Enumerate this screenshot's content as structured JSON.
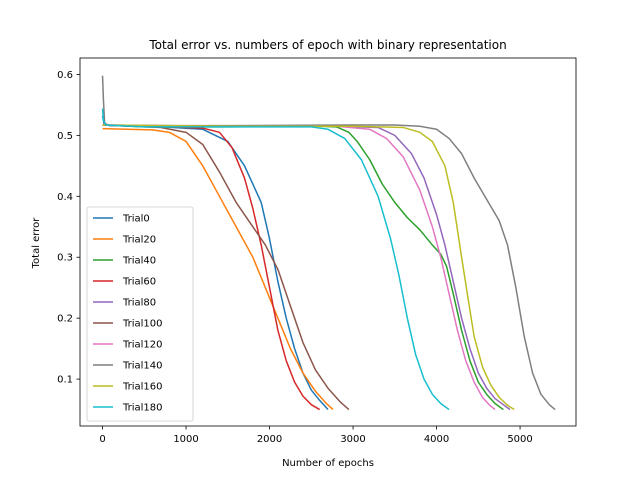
{
  "chart_data": {
    "type": "line",
    "title": "Total error vs. numbers of epoch with binary representation",
    "xlabel": "Number of epochs",
    "ylabel": "Total error",
    "xlim": [
      -270,
      5670
    ],
    "ylim": [
      0.023,
      0.627
    ],
    "xticks": [
      0,
      1000,
      2000,
      3000,
      4000,
      5000
    ],
    "yticks": [
      0.1,
      0.2,
      0.3,
      0.4,
      0.5,
      0.6
    ],
    "grid": false,
    "legend_position": "lower-left",
    "series": [
      {
        "name": "Trial0",
        "color": "#1f77b4",
        "points": [
          [
            0,
            0.532
          ],
          [
            20,
            0.518
          ],
          [
            100,
            0.516
          ],
          [
            600,
            0.515
          ],
          [
            1200,
            0.51
          ],
          [
            1500,
            0.49
          ],
          [
            1700,
            0.45
          ],
          [
            1900,
            0.39
          ],
          [
            2000,
            0.33
          ],
          [
            2100,
            0.26
          ],
          [
            2200,
            0.2
          ],
          [
            2300,
            0.15
          ],
          [
            2400,
            0.11
          ],
          [
            2500,
            0.082
          ],
          [
            2600,
            0.065
          ],
          [
            2700,
            0.05
          ]
        ]
      },
      {
        "name": "Trial20",
        "color": "#ff7f0e",
        "points": [
          [
            0,
            0.511
          ],
          [
            600,
            0.509
          ],
          [
            800,
            0.505
          ],
          [
            1000,
            0.49
          ],
          [
            1200,
            0.45
          ],
          [
            1400,
            0.4
          ],
          [
            1600,
            0.35
          ],
          [
            1800,
            0.3
          ],
          [
            1950,
            0.25
          ],
          [
            2100,
            0.2
          ],
          [
            2250,
            0.15
          ],
          [
            2400,
            0.11
          ],
          [
            2550,
            0.08
          ],
          [
            2680,
            0.06
          ],
          [
            2760,
            0.05
          ]
        ]
      },
      {
        "name": "Trial40",
        "color": "#2ca02c",
        "points": [
          [
            0,
            0.517
          ],
          [
            500,
            0.514
          ],
          [
            1500,
            0.514
          ],
          [
            2600,
            0.515
          ],
          [
            2800,
            0.514
          ],
          [
            2950,
            0.505
          ],
          [
            3050,
            0.49
          ],
          [
            3200,
            0.46
          ],
          [
            3350,
            0.42
          ],
          [
            3500,
            0.39
          ],
          [
            3650,
            0.365
          ],
          [
            3800,
            0.345
          ],
          [
            3950,
            0.32
          ],
          [
            4050,
            0.305
          ],
          [
            4120,
            0.285
          ],
          [
            4200,
            0.24
          ],
          [
            4300,
            0.18
          ],
          [
            4400,
            0.13
          ],
          [
            4500,
            0.095
          ],
          [
            4600,
            0.075
          ],
          [
            4700,
            0.06
          ],
          [
            4800,
            0.05
          ]
        ]
      },
      {
        "name": "Trial60",
        "color": "#d62728",
        "points": [
          [
            0,
            0.517
          ],
          [
            600,
            0.515
          ],
          [
            1200,
            0.512
          ],
          [
            1400,
            0.505
          ],
          [
            1550,
            0.48
          ],
          [
            1700,
            0.43
          ],
          [
            1800,
            0.38
          ],
          [
            1900,
            0.32
          ],
          [
            2000,
            0.25
          ],
          [
            2100,
            0.18
          ],
          [
            2200,
            0.13
          ],
          [
            2300,
            0.095
          ],
          [
            2400,
            0.072
          ],
          [
            2500,
            0.058
          ],
          [
            2600,
            0.05
          ]
        ]
      },
      {
        "name": "Trial80",
        "color": "#9467bd",
        "points": [
          [
            0,
            0.517
          ],
          [
            1500,
            0.515
          ],
          [
            2800,
            0.515
          ],
          [
            3300,
            0.513
          ],
          [
            3500,
            0.5
          ],
          [
            3700,
            0.47
          ],
          [
            3850,
            0.43
          ],
          [
            4000,
            0.37
          ],
          [
            4100,
            0.32
          ],
          [
            4200,
            0.26
          ],
          [
            4300,
            0.2
          ],
          [
            4400,
            0.15
          ],
          [
            4500,
            0.11
          ],
          [
            4600,
            0.085
          ],
          [
            4700,
            0.068
          ],
          [
            4800,
            0.058
          ],
          [
            4880,
            0.05
          ]
        ]
      },
      {
        "name": "Trial100",
        "color": "#8c564b",
        "points": [
          [
            0,
            0.517
          ],
          [
            700,
            0.513
          ],
          [
            1000,
            0.505
          ],
          [
            1200,
            0.485
          ],
          [
            1400,
            0.44
          ],
          [
            1600,
            0.39
          ],
          [
            1800,
            0.35
          ],
          [
            1950,
            0.32
          ],
          [
            2100,
            0.28
          ],
          [
            2250,
            0.22
          ],
          [
            2400,
            0.16
          ],
          [
            2550,
            0.115
          ],
          [
            2700,
            0.085
          ],
          [
            2850,
            0.062
          ],
          [
            2950,
            0.05
          ]
        ]
      },
      {
        "name": "Trial120",
        "color": "#e377c2",
        "points": [
          [
            0,
            0.517
          ],
          [
            1500,
            0.515
          ],
          [
            2800,
            0.515
          ],
          [
            3200,
            0.51
          ],
          [
            3400,
            0.495
          ],
          [
            3600,
            0.465
          ],
          [
            3800,
            0.41
          ],
          [
            3950,
            0.35
          ],
          [
            4050,
            0.3
          ],
          [
            4150,
            0.24
          ],
          [
            4250,
            0.18
          ],
          [
            4350,
            0.13
          ],
          [
            4450,
            0.095
          ],
          [
            4550,
            0.07
          ],
          [
            4630,
            0.058
          ],
          [
            4700,
            0.05
          ]
        ]
      },
      {
        "name": "Trial140",
        "color": "#7f7f7f",
        "points": [
          [
            0,
            0.598
          ],
          [
            10,
            0.56
          ],
          [
            25,
            0.52
          ],
          [
            80,
            0.516
          ],
          [
            1500,
            0.516
          ],
          [
            3000,
            0.517
          ],
          [
            3500,
            0.517
          ],
          [
            3800,
            0.515
          ],
          [
            4000,
            0.51
          ],
          [
            4150,
            0.495
          ],
          [
            4300,
            0.47
          ],
          [
            4450,
            0.43
          ],
          [
            4600,
            0.395
          ],
          [
            4750,
            0.36
          ],
          [
            4850,
            0.32
          ],
          [
            4950,
            0.25
          ],
          [
            5050,
            0.17
          ],
          [
            5150,
            0.11
          ],
          [
            5250,
            0.075
          ],
          [
            5350,
            0.058
          ],
          [
            5420,
            0.05
          ]
        ]
      },
      {
        "name": "Trial160",
        "color": "#bcbd22",
        "points": [
          [
            0,
            0.517
          ],
          [
            1500,
            0.515
          ],
          [
            3000,
            0.515
          ],
          [
            3600,
            0.513
          ],
          [
            3800,
            0.505
          ],
          [
            3950,
            0.49
          ],
          [
            4100,
            0.45
          ],
          [
            4200,
            0.39
          ],
          [
            4300,
            0.3
          ],
          [
            4380,
            0.23
          ],
          [
            4450,
            0.17
          ],
          [
            4550,
            0.12
          ],
          [
            4650,
            0.09
          ],
          [
            4750,
            0.07
          ],
          [
            4850,
            0.057
          ],
          [
            4930,
            0.05
          ]
        ]
      },
      {
        "name": "Trial180",
        "color": "#17becf",
        "points": [
          [
            0,
            0.544
          ],
          [
            10,
            0.525
          ],
          [
            40,
            0.517
          ],
          [
            500,
            0.514
          ],
          [
            1500,
            0.514
          ],
          [
            2500,
            0.514
          ],
          [
            2700,
            0.51
          ],
          [
            2900,
            0.495
          ],
          [
            3100,
            0.46
          ],
          [
            3300,
            0.4
          ],
          [
            3450,
            0.33
          ],
          [
            3550,
            0.27
          ],
          [
            3650,
            0.2
          ],
          [
            3750,
            0.14
          ],
          [
            3850,
            0.1
          ],
          [
            3950,
            0.075
          ],
          [
            4050,
            0.06
          ],
          [
            4150,
            0.05
          ]
        ]
      }
    ]
  }
}
